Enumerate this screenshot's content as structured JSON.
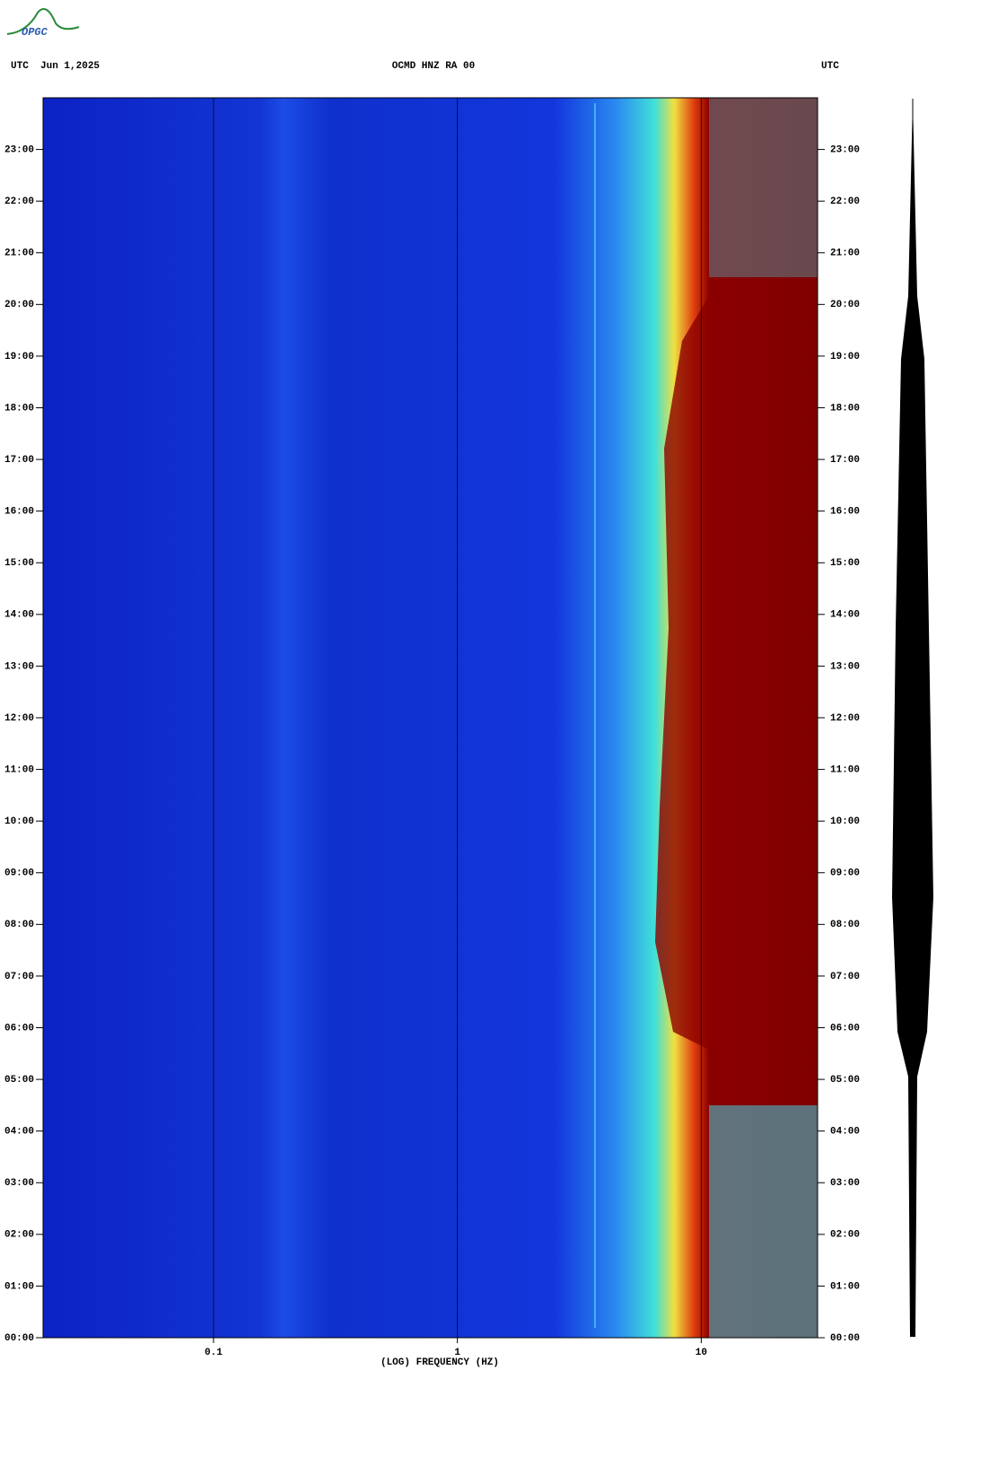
{
  "logo": "OPGC",
  "chart_data": {
    "type": "spectrogram",
    "title": "OCMD HNZ RA 00",
    "date_label": "UTC  Jun 1,2025",
    "right_label": "UTC",
    "x_label": "(LOG) FREQUENCY (HZ)",
    "x_scale": "log",
    "xlim": [
      0.02,
      30
    ],
    "xticks": [
      0.1,
      1,
      10
    ],
    "ylim": [
      0,
      24
    ],
    "yticks": [
      {
        "value": 0,
        "label": "00:00"
      },
      {
        "value": 1,
        "label": "01:00"
      },
      {
        "value": 2,
        "label": "02:00"
      },
      {
        "value": 3,
        "label": "03:00"
      },
      {
        "value": 4,
        "label": "04:00"
      },
      {
        "value": 5,
        "label": "05:00"
      },
      {
        "value": 6,
        "label": "06:00"
      },
      {
        "value": 7,
        "label": "07:00"
      },
      {
        "value": 8,
        "label": "08:00"
      },
      {
        "value": 9,
        "label": "09:00"
      },
      {
        "value": 10,
        "label": "10:00"
      },
      {
        "value": 11,
        "label": "11:00"
      },
      {
        "value": 12,
        "label": "12:00"
      },
      {
        "value": 13,
        "label": "13:00"
      },
      {
        "value": 14,
        "label": "14:00"
      },
      {
        "value": 15,
        "label": "15:00"
      },
      {
        "value": 16,
        "label": "16:00"
      },
      {
        "value": 17,
        "label": "17:00"
      },
      {
        "value": 18,
        "label": "18:00"
      },
      {
        "value": 19,
        "label": "19:00"
      },
      {
        "value": 20,
        "label": "20:00"
      },
      {
        "value": 21,
        "label": "21:00"
      },
      {
        "value": 22,
        "label": "22:00"
      },
      {
        "value": 23,
        "label": "23:00"
      }
    ],
    "grid": true
  }
}
